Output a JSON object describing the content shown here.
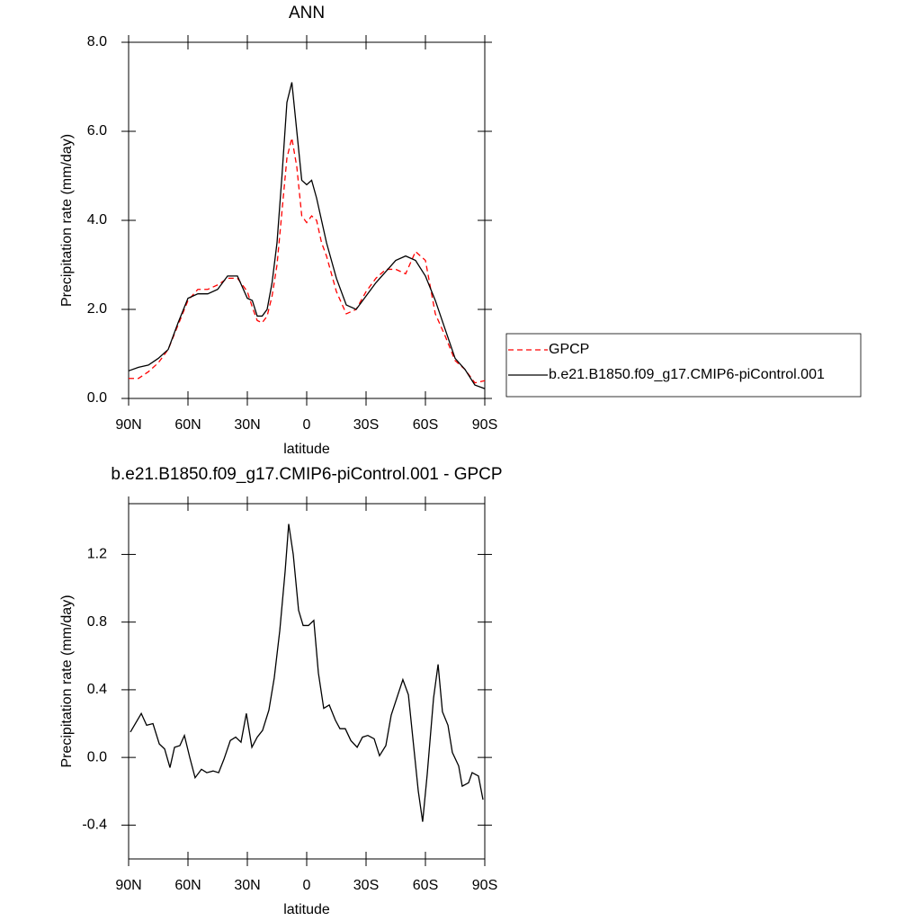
{
  "chart_data": [
    {
      "type": "line",
      "title": "ANN",
      "x_label": "latitude",
      "y_label": "Precipitation rate (mm/day)",
      "x": [
        90,
        85,
        80,
        75,
        70,
        65,
        60,
        55,
        50,
        45,
        40,
        35,
        30,
        27.5,
        25,
        22.5,
        20,
        17.5,
        15,
        12.5,
        10,
        7.5,
        5,
        2.5,
        0,
        -2.5,
        -5,
        -7.5,
        -10,
        -15,
        -20,
        -25,
        -30,
        -35,
        -40,
        -45,
        -50,
        -55,
        -60,
        -65,
        -70,
        -75,
        -80,
        -85,
        -90
      ],
      "series": [
        {
          "name": "GPCP",
          "color": "#ff0000",
          "line_style": "dashed",
          "values": [
            0.45,
            0.45,
            0.6,
            0.8,
            1.1,
            1.65,
            2.2,
            2.45,
            2.45,
            2.55,
            2.7,
            2.7,
            2.4,
            2.05,
            1.75,
            1.7,
            1.85,
            2.3,
            3.0,
            4.2,
            5.4,
            5.85,
            5.2,
            4.1,
            3.95,
            4.1,
            4.0,
            3.5,
            3.2,
            2.4,
            1.9,
            2.0,
            2.4,
            2.7,
            2.9,
            2.9,
            2.8,
            3.3,
            3.1,
            1.9,
            1.4,
            0.85,
            0.65,
            0.35,
            0.4
          ]
        },
        {
          "name": "b.e21.B1850.f09_g17.CMIP6-piControl.001",
          "color": "#000000",
          "line_style": "solid",
          "values": [
            0.62,
            0.7,
            0.75,
            0.9,
            1.1,
            1.7,
            2.25,
            2.35,
            2.35,
            2.45,
            2.75,
            2.75,
            2.25,
            2.2,
            1.85,
            1.85,
            2.0,
            2.6,
            3.5,
            5.0,
            6.65,
            7.1,
            6.0,
            4.9,
            4.8,
            4.9,
            4.5,
            4.0,
            3.5,
            2.7,
            2.1,
            2.0,
            2.3,
            2.6,
            2.85,
            3.1,
            3.2,
            3.1,
            2.75,
            2.2,
            1.55,
            0.9,
            0.65,
            0.3,
            0.22
          ]
        }
      ],
      "xlim": [
        90,
        -90
      ],
      "xticks": [
        {
          "value": 90,
          "label": "90N"
        },
        {
          "value": 60,
          "label": "60N"
        },
        {
          "value": 30,
          "label": "30N"
        },
        0,
        {
          "value": -30,
          "label": "30S"
        },
        {
          "value": -60,
          "label": "60S"
        },
        {
          "value": -90,
          "label": "90S"
        }
      ],
      "ylim": [
        0,
        8
      ],
      "yticks": [
        {
          "value": 0,
          "label": "0.0"
        },
        {
          "value": 2,
          "label": "2.0"
        },
        {
          "value": 4,
          "label": "4.0"
        },
        {
          "value": 6,
          "label": "6.0"
        },
        {
          "value": 8,
          "label": "8.0"
        }
      ],
      "legend": "right"
    },
    {
      "type": "line",
      "title": "b.e21.B1850.f09_g17.CMIP6-piControl.001 - GPCP",
      "x_label": "latitude",
      "y_label": "Precipitation rate (mm/day)",
      "x": [
        89.1,
        83.6,
        80.9,
        77.7,
        74.5,
        71.8,
        69.1,
        66.8,
        64.1,
        61.8,
        59.1,
        56.4,
        53.2,
        50.5,
        47.3,
        44.5,
        41.8,
        38.6,
        35.9,
        33.2,
        30.5,
        27.7,
        25,
        22.3,
        19.1,
        16.4,
        13.6,
        10.9,
        9.1,
        6.8,
        4.1,
        1.8,
        -0.9,
        -3.6,
        -5.9,
        -8.6,
        -11.4,
        -14.5,
        -16.8,
        -19.5,
        -22.3,
        -25.5,
        -28.2,
        -30.9,
        -34.1,
        -36.8,
        -40,
        -42.7,
        -48.6,
        -51.4,
        -56.4,
        -58.6,
        -60.9,
        -64.1,
        -66.4,
        -68.6,
        -71.4,
        -73.6,
        -76.8,
        -78.6,
        -81.8,
        -83.6,
        -86.8,
        -89.1
      ],
      "series": [
        {
          "color": "#000000",
          "line_style": "solid",
          "values": [
            0.15,
            0.26,
            0.19,
            0.2,
            0.08,
            0.05,
            -0.06,
            0.06,
            0.07,
            0.13,
            0.0,
            -0.12,
            -0.07,
            -0.09,
            -0.08,
            -0.09,
            -0.01,
            0.1,
            0.12,
            0.09,
            0.26,
            0.06,
            0.12,
            0.16,
            0.28,
            0.47,
            0.75,
            1.1,
            1.38,
            1.2,
            0.87,
            0.78,
            0.78,
            0.81,
            0.5,
            0.29,
            0.31,
            0.22,
            0.17,
            0.17,
            0.1,
            0.06,
            0.12,
            0.13,
            0.11,
            0.01,
            0.07,
            0.25,
            0.46,
            0.37,
            -0.2,
            -0.38,
            -0.1,
            0.35,
            0.55,
            0.27,
            0.19,
            0.03,
            -0.05,
            -0.17,
            -0.15,
            -0.09,
            -0.11,
            -0.25
          ]
        }
      ],
      "xlim": [
        90,
        -90
      ],
      "xticks": [
        {
          "value": 90,
          "label": "90N"
        },
        {
          "value": 60,
          "label": "60N"
        },
        {
          "value": 30,
          "label": "30N"
        },
        0,
        {
          "value": -30,
          "label": "30S"
        },
        {
          "value": -60,
          "label": "60S"
        },
        {
          "value": -90,
          "label": "90S"
        }
      ],
      "ylim": [
        -0.6,
        1.5
      ],
      "yticks": [
        -0.4,
        {
          "value": 0,
          "label": "0.0"
        },
        0.4,
        0.8,
        1.2
      ]
    }
  ]
}
